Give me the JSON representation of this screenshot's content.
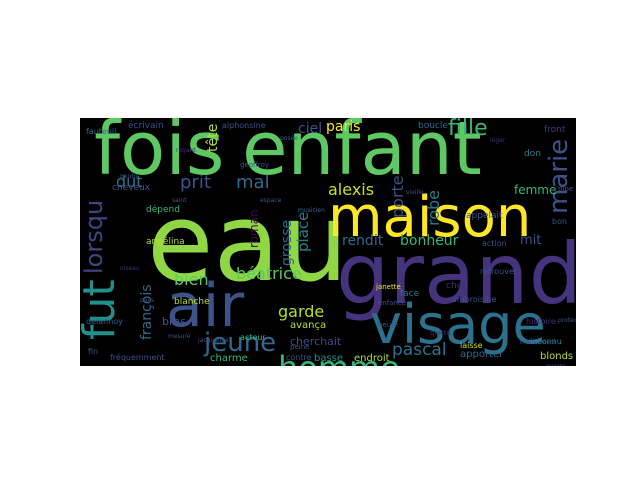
{
  "words": [
    {
      "text": "eau",
      "color": "#8fd744"
    },
    {
      "text": "grand",
      "color": "#46337e"
    },
    {
      "text": "fois",
      "color": "#5ec962"
    },
    {
      "text": "enfant",
      "color": "#5ec962"
    },
    {
      "text": "maison",
      "color": "#fde725"
    },
    {
      "text": "visage",
      "color": "#2c728e"
    },
    {
      "text": "air",
      "color": "#3b528b"
    },
    {
      "text": "fut",
      "color": "#21918c"
    },
    {
      "text": "homme",
      "color": "#35b779"
    },
    {
      "text": "jeune",
      "color": "#31688e"
    },
    {
      "text": "marie",
      "color": "#3b528b"
    },
    {
      "text": "lorsqu",
      "color": "#414487"
    },
    {
      "text": "fille",
      "color": "#35b779"
    },
    {
      "text": "alexis",
      "color": "#c8e020"
    },
    {
      "text": "pascal",
      "color": "#2c728e"
    },
    {
      "text": "prit",
      "color": "#3b528b"
    },
    {
      "text": "mal",
      "color": "#31688e"
    },
    {
      "text": "bonheur",
      "color": "#35b779"
    },
    {
      "text": "rendit",
      "color": "#31688e"
    },
    {
      "text": "robe",
      "color": "#287c8e"
    },
    {
      "text": "porte",
      "color": "#3b528b"
    },
    {
      "text": "garde",
      "color": "#b5de2b"
    },
    {
      "text": "béatrice",
      "color": "#5ec962"
    },
    {
      "text": "bien",
      "color": "#5ec962"
    },
    {
      "text": "françois",
      "color": "#31688e"
    },
    {
      "text": "dut",
      "color": "#2c728e"
    },
    {
      "text": "paris",
      "color": "#fde725"
    },
    {
      "text": "ciel",
      "color": "#3b528b"
    },
    {
      "text": "tête",
      "color": "#b5de2b"
    },
    {
      "text": "place",
      "color": "#287c8e"
    },
    {
      "text": "grosse",
      "color": "#31688e"
    },
    {
      "text": "roman",
      "color": "#440154"
    },
    {
      "text": "mit",
      "color": "#3b528b"
    },
    {
      "text": "femme",
      "color": "#35b779"
    },
    {
      "text": "cherchait",
      "color": "#3e4989"
    },
    {
      "text": "avança",
      "color": "#b5de2b"
    },
    {
      "text": "bras",
      "color": "#3b528b"
    },
    {
      "text": "blonds",
      "color": "#b5de2b"
    },
    {
      "text": "apporter",
      "color": "#31688e"
    },
    {
      "text": "charme",
      "color": "#35b779"
    },
    {
      "text": "contre",
      "color": "#3b528b"
    },
    {
      "text": "basse",
      "color": "#21918c"
    },
    {
      "text": "endroit",
      "color": "#b5de2b"
    },
    {
      "text": "écrivain",
      "color": "#3b528b"
    },
    {
      "text": "alphonsine",
      "color": "#3b528b"
    },
    {
      "text": "boucle",
      "color": "#31688e"
    },
    {
      "text": "front",
      "color": "#443983"
    },
    {
      "text": "don",
      "color": "#287c8e"
    },
    {
      "text": "chef",
      "color": "#472d7b"
    },
    {
      "text": "appelait",
      "color": "#3b528b"
    },
    {
      "text": "dépend",
      "color": "#35b779"
    },
    {
      "text": "blanche",
      "color": "#b5de2b"
    },
    {
      "text": "angélina",
      "color": "#b5de2b"
    },
    {
      "text": "delannoy",
      "color": "#31688e"
    },
    {
      "text": "fauteuil",
      "color": "#31688e"
    },
    {
      "text": "cheveux",
      "color": "#3b528b"
    },
    {
      "text": "fréquemment",
      "color": "#3b528b"
    },
    {
      "text": "action",
      "color": "#3b528b"
    },
    {
      "text": "ambroisine",
      "color": "#3b528b"
    },
    {
      "text": "face",
      "color": "#2c728e"
    },
    {
      "text": "laisse",
      "color": "#c8e020"
    },
    {
      "text": "inconnu",
      "color": "#21918c"
    },
    {
      "text": "histoire",
      "color": "#472d7b"
    },
    {
      "text": "bon",
      "color": "#3b528b"
    },
    {
      "text": "retrouver",
      "color": "#3b528b"
    },
    {
      "text": "janette",
      "color": "#fde725"
    },
    {
      "text": "quitta",
      "color": "#472d7b"
    },
    {
      "text": "acteur",
      "color": "#35b779"
    },
    {
      "text": "fin",
      "color": "#3b528b"
    },
    {
      "text": "heure",
      "color": "#3b528b"
    },
    {
      "text": "peine",
      "color": "#3b528b"
    },
    {
      "text": "geoffroy",
      "color": "#3b528b"
    },
    {
      "text": "jacqueline",
      "color": "#3b528b"
    },
    {
      "text": "mouvement",
      "color": "#3b528b"
    },
    {
      "text": "protection",
      "color": "#3b528b"
    },
    {
      "text": "pipe",
      "color": "#3b528b"
    },
    {
      "text": "regard",
      "color": "#472d7b"
    },
    {
      "text": "saint",
      "color": "#3b528b"
    },
    {
      "text": "léger",
      "color": "#472d7b"
    },
    {
      "text": "posée",
      "color": "#31688e"
    },
    {
      "text": "guerre",
      "color": "#3b528b"
    },
    {
      "text": "perdu",
      "color": "#3b528b"
    },
    {
      "text": "pays",
      "color": "#3b528b"
    },
    {
      "text": "mesure",
      "color": "#3b528b"
    },
    {
      "text": "oiseau",
      "color": "#472d7b"
    },
    {
      "text": "musicien",
      "color": "#31688e"
    },
    {
      "text": "espace",
      "color": "#3b528b"
    },
    {
      "text": "vieille",
      "color": "#3b528b"
    },
    {
      "text": "enfance",
      "color": "#3b528b"
    }
  ]
}
